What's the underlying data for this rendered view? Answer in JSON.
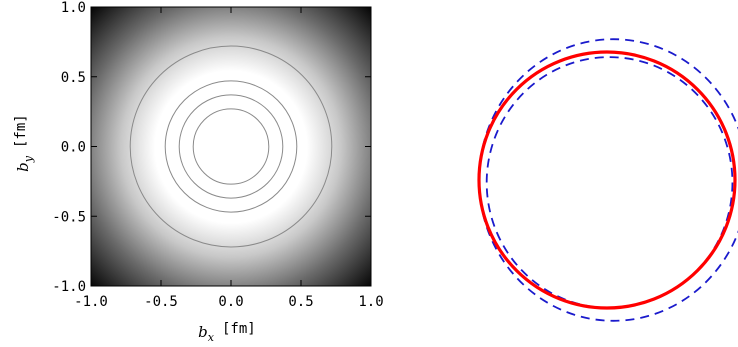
{
  "chart_data": [
    {
      "type": "heatmap",
      "title": "",
      "xlabel": {
        "symbol": "b",
        "subscript": "x",
        "unit": "[fm]"
      },
      "ylabel": {
        "symbol": "b",
        "subscript": "y",
        "unit": "[fm]"
      },
      "xlim": [
        -1.0,
        1.0
      ],
      "ylim": [
        -1.0,
        1.0
      ],
      "x_ticks": [
        "-1.0",
        "-0.5",
        "0.0",
        "0.5",
        "1.0"
      ],
      "y_ticks": [
        "1.0",
        "0.5",
        "0.0",
        "-0.5",
        "-1.0"
      ],
      "colormap": {
        "center": "#ffffff",
        "edge": "#000000"
      },
      "contours": [
        {
          "radius": 0.72,
          "cx": 0.0,
          "cy": 0.0
        },
        {
          "radius": 0.47,
          "cx": 0.0,
          "cy": 0.0
        },
        {
          "radius": 0.37,
          "cx": 0.0,
          "cy": 0.0
        },
        {
          "radius": 0.27,
          "cx": 0.0,
          "cy": 0.0
        }
      ],
      "contour_color": "#8a8a8a"
    },
    {
      "type": "line",
      "axes": "none",
      "series": [
        {
          "style": "solid",
          "color": "#ff0000",
          "rx": 1.0,
          "ry": 1.0,
          "cx": 0.0,
          "cy": 0.0
        },
        {
          "style": "dashed",
          "color": "#1a1acc",
          "rx": 1.05,
          "ry": 1.1,
          "cx": 0.05,
          "cy": 0.0
        },
        {
          "style": "dashed",
          "color": "#1a1acc",
          "rx": 0.96,
          "ry": 0.98,
          "cx": 0.02,
          "cy": -0.02
        }
      ]
    }
  ]
}
